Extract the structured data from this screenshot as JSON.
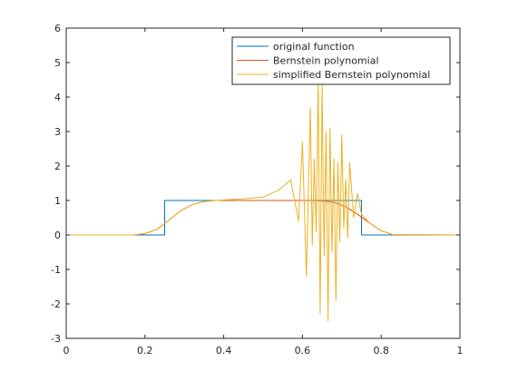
{
  "chart_data": {
    "type": "line",
    "xlim": [
      0,
      1
    ],
    "ylim": [
      -3,
      6
    ],
    "x_ticks": [
      0,
      0.2,
      0.4,
      0.6,
      0.8,
      1
    ],
    "y_ticks": [
      -3,
      -2,
      -1,
      0,
      1,
      2,
      3,
      4,
      5,
      6
    ],
    "x_tick_labels": [
      "0",
      "0.2",
      "0.4",
      "0.6",
      "0.8",
      "1"
    ],
    "y_tick_labels": [
      "-3",
      "-2",
      "-1",
      "0",
      "1",
      "2",
      "3",
      "4",
      "5",
      "6"
    ],
    "grid": false,
    "legend_position": "top-right",
    "series": [
      {
        "name": "original function",
        "color": "#0072bd",
        "x": [
          0,
          0.25,
          0.25,
          0.75,
          0.75,
          1
        ],
        "y": [
          0,
          0,
          1,
          1,
          0,
          0
        ]
      },
      {
        "name": "Bernstein polynomial",
        "color": "#d95319",
        "x": [
          0,
          0.17,
          0.2,
          0.23,
          0.26,
          0.29,
          0.32,
          0.35,
          0.38,
          0.45,
          0.55,
          0.62,
          0.65,
          0.68,
          0.71,
          0.74,
          0.77,
          0.8,
          0.83,
          1
        ],
        "y": [
          0,
          0,
          0.04,
          0.16,
          0.42,
          0.7,
          0.88,
          0.97,
          1,
          1,
          1,
          1,
          0.99,
          0.95,
          0.82,
          0.6,
          0.35,
          0.12,
          0.01,
          0
        ]
      },
      {
        "name": "simplified Bernstein polynomial",
        "color": "#edb120",
        "x": [
          0,
          0.17,
          0.2,
          0.23,
          0.26,
          0.29,
          0.32,
          0.35,
          0.38,
          0.45,
          0.5,
          0.54,
          0.57,
          0.59,
          0.6,
          0.61,
          0.62,
          0.625,
          0.63,
          0.635,
          0.64,
          0.645,
          0.65,
          0.655,
          0.66,
          0.665,
          0.67,
          0.675,
          0.68,
          0.685,
          0.69,
          0.695,
          0.7,
          0.705,
          0.71,
          0.715,
          0.72,
          0.73,
          0.74,
          0.75,
          0.77,
          0.8,
          0.83,
          1
        ],
        "y": [
          0,
          0,
          0.04,
          0.16,
          0.42,
          0.7,
          0.88,
          0.97,
          1,
          1.05,
          1.1,
          1.3,
          1.6,
          0.4,
          2.7,
          -1.2,
          3.7,
          -0.3,
          2.2,
          0.1,
          4.5,
          -2.3,
          4.4,
          -0.6,
          3.0,
          -2.5,
          3.1,
          -0.5,
          2.2,
          -1.9,
          2.1,
          -0.2,
          2.9,
          0.2,
          1.6,
          -0.1,
          2.1,
          0.5,
          1.2,
          0.6,
          0.35,
          0.12,
          0.01,
          0
        ]
      }
    ]
  }
}
